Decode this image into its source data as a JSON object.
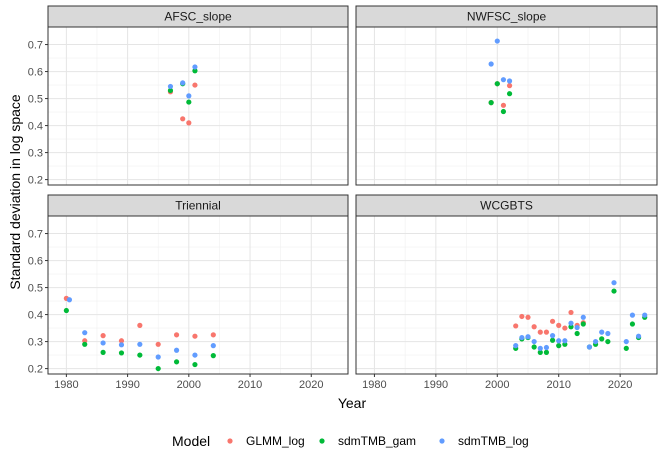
{
  "chart_data": {
    "type": "scatter",
    "xlabel": "Year",
    "ylabel": "Standard deviation in log space",
    "xlim": [
      1977,
      2026
    ],
    "ylim": [
      0.18,
      0.765
    ],
    "x_ticks": [
      1980,
      1990,
      2000,
      2010,
      2020
    ],
    "y_ticks": [
      0.2,
      0.3,
      0.4,
      0.5,
      0.6,
      0.7
    ],
    "grid": true,
    "legend_position": "bottom",
    "legend": {
      "title": "Model",
      "entries": [
        {
          "name": "GLMM_log",
          "color": "#F8766D"
        },
        {
          "name": "sdmTMB_gam",
          "color": "#00BA38"
        },
        {
          "name": "sdmTMB_log",
          "color": "#619CFF"
        }
      ]
    },
    "panels": [
      {
        "title": "AFSC_slope",
        "series": [
          {
            "name": "GLMM_log",
            "points": [
              [
                1997,
                0.525
              ],
              [
                1999,
                0.425
              ],
              [
                2000,
                0.41
              ],
              [
                2001,
                0.55
              ]
            ]
          },
          {
            "name": "sdmTMB_gam",
            "points": [
              [
                1997,
                0.53
              ],
              [
                1999,
                0.555
              ],
              [
                2000,
                0.487
              ],
              [
                2001,
                0.603
              ]
            ]
          },
          {
            "name": "sdmTMB_log",
            "points": [
              [
                1997,
                0.545
              ],
              [
                1999,
                0.558
              ],
              [
                2000,
                0.51
              ],
              [
                2001,
                0.617
              ]
            ]
          }
        ]
      },
      {
        "title": "NWFSC_slope",
        "series": [
          {
            "name": "GLMM_log",
            "points": [
              [
                1999,
                0.485
              ],
              [
                2000,
                0.555
              ],
              [
                2001,
                0.475
              ],
              [
                2002,
                0.548
              ]
            ]
          },
          {
            "name": "sdmTMB_gam",
            "points": [
              [
                1999,
                0.485
              ],
              [
                2000,
                0.555
              ],
              [
                2001,
                0.452
              ],
              [
                2002,
                0.518
              ]
            ]
          },
          {
            "name": "sdmTMB_log",
            "points": [
              [
                1999,
                0.628
              ],
              [
                2000,
                0.713
              ],
              [
                2001,
                0.57
              ],
              [
                2002,
                0.565
              ]
            ]
          }
        ]
      },
      {
        "title": "Triennial",
        "series": [
          {
            "name": "GLMM_log",
            "points": [
              [
                1980,
                0.46
              ],
              [
                1983,
                0.303
              ],
              [
                1986,
                0.322
              ],
              [
                1989,
                0.303
              ],
              [
                1992,
                0.36
              ],
              [
                1995,
                0.29
              ],
              [
                1998,
                0.325
              ],
              [
                2001,
                0.32
              ],
              [
                2004,
                0.325
              ]
            ]
          },
          {
            "name": "sdmTMB_gam",
            "points": [
              [
                1980,
                0.415
              ],
              [
                1983,
                0.29
              ],
              [
                1986,
                0.26
              ],
              [
                1989,
                0.258
              ],
              [
                1992,
                0.25
              ],
              [
                1995,
                0.2
              ],
              [
                1998,
                0.225
              ],
              [
                2001,
                0.215
              ],
              [
                2004,
                0.248
              ]
            ]
          },
          {
            "name": "sdmTMB_log",
            "points": [
              [
                1980.5,
                0.455
              ],
              [
                1983,
                0.333
              ],
              [
                1986,
                0.295
              ],
              [
                1989,
                0.288
              ],
              [
                1992,
                0.29
              ],
              [
                1995,
                0.243
              ],
              [
                1998,
                0.268
              ],
              [
                2001,
                0.25
              ],
              [
                2004,
                0.285
              ]
            ]
          }
        ]
      },
      {
        "title": "WCGBTS",
        "series": [
          {
            "name": "GLMM_log",
            "points": [
              [
                2003,
                0.358
              ],
              [
                2004,
                0.393
              ],
              [
                2005,
                0.39
              ],
              [
                2006,
                0.355
              ],
              [
                2007,
                0.335
              ],
              [
                2008,
                0.335
              ],
              [
                2009,
                0.375
              ],
              [
                2010,
                0.36
              ],
              [
                2011,
                0.35
              ],
              [
                2012,
                0.408
              ],
              [
                2013,
                0.36
              ],
              [
                2014,
                0.37
              ]
            ]
          },
          {
            "name": "sdmTMB_gam",
            "points": [
              [
                2003,
                0.275
              ],
              [
                2004,
                0.31
              ],
              [
                2005,
                0.315
              ],
              [
                2006,
                0.28
              ],
              [
                2007,
                0.26
              ],
              [
                2008,
                0.26
              ],
              [
                2009,
                0.305
              ],
              [
                2010,
                0.285
              ],
              [
                2011,
                0.29
              ],
              [
                2012,
                0.355
              ],
              [
                2013,
                0.33
              ],
              [
                2014,
                0.365
              ],
              [
                2015,
                0.28
              ],
              [
                2016,
                0.29
              ],
              [
                2017,
                0.31
              ],
              [
                2018,
                0.3
              ],
              [
                2019,
                0.487
              ],
              [
                2021,
                0.275
              ],
              [
                2022,
                0.365
              ],
              [
                2023,
                0.315
              ],
              [
                2024,
                0.39
              ]
            ]
          },
          {
            "name": "sdmTMB_log",
            "points": [
              [
                2003,
                0.285
              ],
              [
                2004,
                0.315
              ],
              [
                2005,
                0.318
              ],
              [
                2006,
                0.3
              ],
              [
                2007,
                0.275
              ],
              [
                2008,
                0.278
              ],
              [
                2009,
                0.322
              ],
              [
                2010,
                0.303
              ],
              [
                2011,
                0.303
              ],
              [
                2012,
                0.368
              ],
              [
                2013,
                0.352
              ],
              [
                2014,
                0.39
              ],
              [
                2015,
                0.28
              ],
              [
                2016,
                0.3
              ],
              [
                2017,
                0.335
              ],
              [
                2018,
                0.33
              ],
              [
                2019,
                0.518
              ],
              [
                2021,
                0.3
              ],
              [
                2022,
                0.398
              ],
              [
                2023,
                0.32
              ],
              [
                2024,
                0.398
              ]
            ]
          }
        ]
      }
    ]
  }
}
